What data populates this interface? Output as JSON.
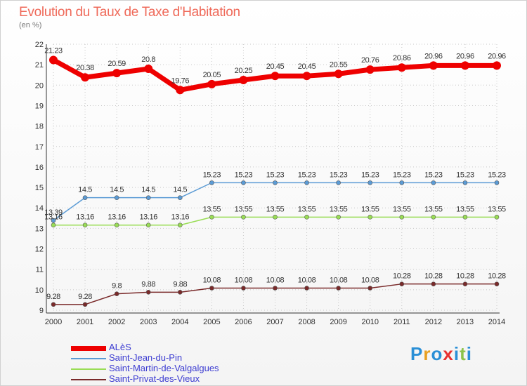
{
  "title": "Evolution du Taux de Taxe d'Habitation",
  "subtitle": "(en %)",
  "logo": {
    "text": "Proxiti",
    "colors": [
      "#2a8fd6",
      "#e8a020",
      "#2a8fd6",
      "#e83030",
      "#2a8fd6",
      "#8bc34a",
      "#2a8fd6"
    ]
  },
  "chart_data": {
    "type": "line",
    "title": "Evolution du Taux de Taxe d'Habitation",
    "ylabel": "(en %)",
    "xlabel": "",
    "x": [
      "2000",
      "2001",
      "2002",
      "2003",
      "2004",
      "2005",
      "2006",
      "2007",
      "2008",
      "2009",
      "2010",
      "2011",
      "2012",
      "2013",
      "2014"
    ],
    "ylim": [
      9,
      22
    ],
    "yticks": [
      "9",
      "10",
      "11",
      "12",
      "13",
      "14",
      "15",
      "16",
      "17",
      "18",
      "19",
      "20",
      "21",
      "22"
    ],
    "grid": "dotted horizontal and vertical",
    "legend_position": "bottom-left",
    "series": [
      {
        "name": "ALèS",
        "color": "#ee0000",
        "line_width": 7,
        "values": [
          21.23,
          20.38,
          20.59,
          20.8,
          19.76,
          20.05,
          20.25,
          20.45,
          20.45,
          20.55,
          20.76,
          20.86,
          20.96,
          20.96,
          20.96
        ],
        "labels": [
          "21.23",
          "20.38",
          "20.59",
          "20.8",
          "19.76",
          "20.05",
          "20.25",
          "20.45",
          "20.45",
          "20.55",
          "20.76",
          "20.86",
          "20.96",
          "20.96",
          "20.96"
        ]
      },
      {
        "name": "Saint-Jean-du-Pin",
        "color": "#5b9bd5",
        "line_width": 1.5,
        "values": [
          13.39,
          14.5,
          14.5,
          14.5,
          14.5,
          15.23,
          15.23,
          15.23,
          15.23,
          15.23,
          15.23,
          15.23,
          15.23,
          15.23,
          15.23
        ],
        "labels": [
          "13.39",
          "14.5",
          "14.5",
          "14.5",
          "14.5",
          "15.23",
          "15.23",
          "15.23",
          "15.23",
          "15.23",
          "15.23",
          "15.23",
          "15.23",
          "15.23",
          "15.23"
        ]
      },
      {
        "name": "Saint-Martin-de-Valgalgues",
        "color": "#99dd55",
        "line_width": 1.5,
        "values": [
          13.16,
          13.16,
          13.16,
          13.16,
          13.16,
          13.55,
          13.55,
          13.55,
          13.55,
          13.55,
          13.55,
          13.55,
          13.55,
          13.55,
          13.55
        ],
        "labels": [
          "13.16",
          "13.16",
          "13.16",
          "13.16",
          "13.16",
          "13.55",
          "13.55",
          "13.55",
          "13.55",
          "13.55",
          "13.55",
          "13.55",
          "13.55",
          "13.55",
          "13.55"
        ]
      },
      {
        "name": "Saint-Privat-des-Vieux",
        "color": "#7a2a2a",
        "line_width": 1.5,
        "values": [
          9.28,
          9.28,
          9.8,
          9.88,
          9.88,
          10.08,
          10.08,
          10.08,
          10.08,
          10.08,
          10.08,
          10.28,
          10.28,
          10.28,
          10.28
        ],
        "labels": [
          "9.28",
          "9.28",
          "9.8",
          "9.88",
          "9.88",
          "10.08",
          "10.08",
          "10.08",
          "10.08",
          "10.08",
          "10.08",
          "10.28",
          "10.28",
          "10.28",
          "10.28"
        ]
      }
    ]
  }
}
